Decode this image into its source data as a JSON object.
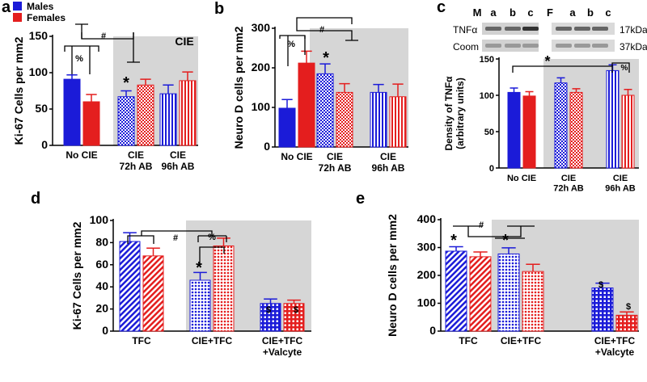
{
  "chart_data": [
    {
      "type": "bar",
      "letter": "a",
      "ylabel": "Ki-67 Cells per mm2",
      "categories": [
        "No CIE",
        "CIE\n72h AB",
        "CIE\n96h AB"
      ],
      "series": [
        {
          "name": "Males",
          "color": "#1b1bd8",
          "values": [
            91,
            67,
            71
          ],
          "errors": [
            6,
            8,
            12
          ]
        },
        {
          "name": "Females",
          "color": "#e41e1e",
          "values": [
            60,
            83,
            89
          ],
          "errors": [
            10,
            8,
            12
          ]
        }
      ],
      "ylim": [
        0,
        150
      ],
      "yticks": [
        0,
        50,
        100,
        150
      ],
      "annotations": [
        "CIE",
        "%",
        "#",
        "*"
      ]
    },
    {
      "type": "bar",
      "letter": "b",
      "ylabel": "Neuro D cells per mm2",
      "categories": [
        "No CIE",
        "CIE\n72h AB",
        "CIE\n96h AB"
      ],
      "series": [
        {
          "name": "Males",
          "color": "#1b1bd8",
          "values": [
            98,
            185,
            138
          ],
          "errors": [
            22,
            25,
            20
          ]
        },
        {
          "name": "Females",
          "color": "#e41e1e",
          "values": [
            212,
            138,
            127
          ],
          "errors": [
            30,
            22,
            32
          ]
        }
      ],
      "ylim": [
        0,
        300
      ],
      "yticks": [
        0,
        100,
        200,
        300
      ],
      "annotations": [
        "%",
        "#",
        "*"
      ]
    },
    {
      "type": "bar",
      "letter": "c",
      "ylabel": "Density of TNFα\n(arbitrary units)",
      "categories": [
        "No CIE",
        "CIE\n72h AB",
        "CIE\n96h AB"
      ],
      "series": [
        {
          "name": "Males",
          "color": "#1b1bd8",
          "values": [
            104,
            117,
            134
          ],
          "errors": [
            6,
            7,
            8
          ]
        },
        {
          "name": "Females",
          "color": "#e41e1e",
          "values": [
            99,
            104,
            100
          ],
          "errors": [
            6,
            5,
            8
          ]
        }
      ],
      "ylim": [
        0,
        150
      ],
      "yticks": [
        0,
        50,
        100,
        150
      ],
      "annotations": [
        "*",
        "%"
      ],
      "blot": {
        "lanes": [
          "M",
          "a",
          "b",
          "c",
          "F",
          "a",
          "b",
          "c"
        ],
        "rows": [
          "TNFα",
          "Coom"
        ],
        "sizes": [
          "17kDa",
          "37kDa"
        ]
      }
    },
    {
      "type": "bar",
      "letter": "d",
      "ylabel": "Ki-67 Cells per mm2",
      "categories": [
        "TFC",
        "CIE+TFC",
        "CIE+TFC\n+Valcyte"
      ],
      "series": [
        {
          "name": "Males",
          "color": "#1b1bd8",
          "values": [
            81,
            46,
            25
          ],
          "errors": [
            8,
            7,
            4
          ]
        },
        {
          "name": "Females",
          "color": "#e41e1e",
          "values": [
            68,
            77,
            25
          ],
          "errors": [
            7,
            7,
            3
          ]
        }
      ],
      "ylim": [
        0,
        100
      ],
      "yticks": [
        0,
        20,
        40,
        60,
        80,
        100
      ],
      "annotations": [
        "#",
        "%",
        "*",
        "$",
        "$"
      ]
    },
    {
      "type": "bar",
      "letter": "e",
      "ylabel": "Neuro D cells per mm2",
      "categories": [
        "TFC",
        "CIE+TFC",
        "CIE+TFC\n+Valcyte"
      ],
      "series": [
        {
          "name": "Males",
          "color": "#1b1bd8",
          "values": [
            287,
            277,
            155
          ],
          "errors": [
            16,
            22,
            17
          ]
        },
        {
          "name": "Females",
          "color": "#e41e1e",
          "values": [
            267,
            214,
            57
          ],
          "errors": [
            17,
            26,
            12
          ]
        }
      ],
      "ylim": [
        0,
        400
      ],
      "yticks": [
        0,
        100,
        200,
        300,
        400
      ],
      "annotations": [
        "*",
        "*",
        "#",
        "$",
        "$"
      ]
    }
  ]
}
